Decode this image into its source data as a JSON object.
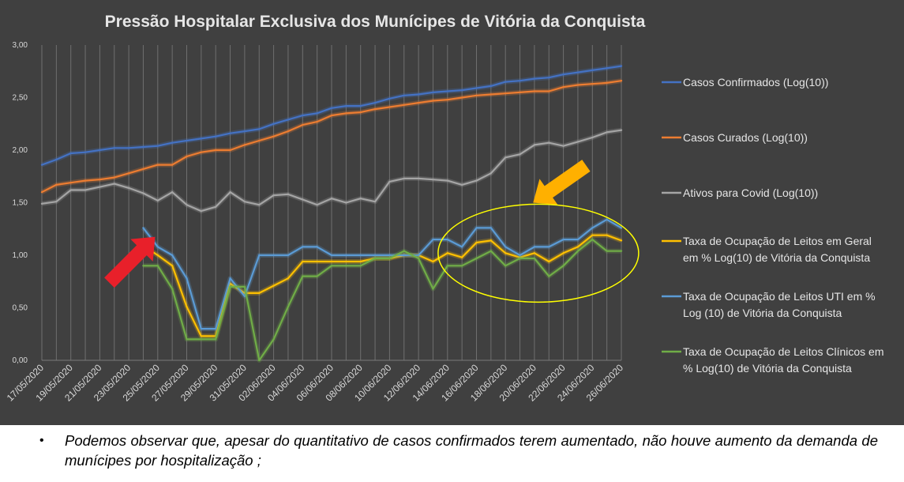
{
  "chart_data": {
    "type": "line",
    "title": "Pressão Hospitalar Exclusiva dos Munícipes de Vitória da Conquista",
    "xlabel": "",
    "ylabel": "",
    "ylim": [
      0,
      3
    ],
    "yticks": [
      "0,00",
      "0,50",
      "1,00",
      "1,50",
      "2,00",
      "2,50",
      "3,00"
    ],
    "grid": "vertical",
    "legend_position": "right",
    "x": [
      "17/05/2020",
      "18/05/2020",
      "19/05/2020",
      "20/05/2020",
      "21/05/2020",
      "22/05/2020",
      "23/05/2020",
      "24/05/2020",
      "25/05/2020",
      "26/05/2020",
      "27/05/2020",
      "28/05/2020",
      "29/05/2020",
      "30/05/2020",
      "31/05/2020",
      "01/06/2020",
      "02/06/2020",
      "03/06/2020",
      "04/06/2020",
      "05/06/2020",
      "06/06/2020",
      "07/06/2020",
      "08/06/2020",
      "09/06/2020",
      "10/06/2020",
      "11/06/2020",
      "12/06/2020",
      "13/06/2020",
      "14/06/2020",
      "15/06/2020",
      "16/06/2020",
      "17/06/2020",
      "18/06/2020",
      "19/06/2020",
      "20/06/2020",
      "21/06/2020",
      "22/06/2020",
      "23/06/2020",
      "24/06/2020",
      "25/06/2020",
      "26/06/2020"
    ],
    "xtick_labels": [
      "17/05/2020",
      "19/05/2020",
      "21/05/2020",
      "23/05/2020",
      "25/05/2020",
      "27/05/2020",
      "29/05/2020",
      "31/05/2020",
      "02/06/2020",
      "04/06/2020",
      "06/06/2020",
      "08/06/2020",
      "10/06/2020",
      "12/06/2020",
      "14/06/2020",
      "16/06/2020",
      "18/06/2020",
      "20/06/2020",
      "22/06/2020",
      "24/06/2020",
      "26/06/2020"
    ],
    "series": [
      {
        "name": "Casos Confirmados (Log(10))",
        "color": "#4472c4",
        "values": [
          1.86,
          1.91,
          1.97,
          1.98,
          2.0,
          2.02,
          2.02,
          2.03,
          2.04,
          2.07,
          2.09,
          2.11,
          2.13,
          2.16,
          2.18,
          2.2,
          2.25,
          2.29,
          2.33,
          2.35,
          2.4,
          2.42,
          2.42,
          2.45,
          2.49,
          2.52,
          2.53,
          2.55,
          2.56,
          2.57,
          2.59,
          2.61,
          2.65,
          2.66,
          2.68,
          2.69,
          2.72,
          2.74,
          2.76,
          2.78,
          2.8
        ]
      },
      {
        "name": "Casos Curados (Log(10))",
        "color": "#ed7d31",
        "values": [
          1.6,
          1.67,
          1.69,
          1.71,
          1.72,
          1.74,
          1.78,
          1.82,
          1.86,
          1.86,
          1.94,
          1.98,
          2.0,
          2.0,
          2.05,
          2.09,
          2.13,
          2.18,
          2.24,
          2.27,
          2.33,
          2.35,
          2.36,
          2.39,
          2.41,
          2.43,
          2.45,
          2.47,
          2.48,
          2.5,
          2.52,
          2.53,
          2.54,
          2.55,
          2.56,
          2.56,
          2.6,
          2.62,
          2.63,
          2.64,
          2.66
        ]
      },
      {
        "name": "Ativos para Covid (Log(10))",
        "color": "#a5a5a5",
        "values": [
          1.49,
          1.51,
          1.62,
          1.62,
          1.65,
          1.68,
          1.64,
          1.59,
          1.52,
          1.6,
          1.48,
          1.42,
          1.46,
          1.6,
          1.51,
          1.48,
          1.57,
          1.58,
          1.53,
          1.48,
          1.54,
          1.5,
          1.54,
          1.51,
          1.7,
          1.73,
          1.73,
          1.72,
          1.71,
          1.67,
          1.71,
          1.78,
          1.93,
          1.96,
          2.05,
          2.07,
          2.04,
          2.08,
          2.12,
          2.17,
          2.19
        ]
      },
      {
        "name": "Taxa de Ocupação de Leitos em Geral em % Log(10) de Vitória da Conquista",
        "color": "#ffc000",
        "values": [
          null,
          null,
          null,
          null,
          null,
          null,
          null,
          1.09,
          1.0,
          0.9,
          0.51,
          0.23,
          0.23,
          0.73,
          0.64,
          0.64,
          0.71,
          0.78,
          0.94,
          0.94,
          0.94,
          0.94,
          0.94,
          0.97,
          0.97,
          1.0,
          1.0,
          0.94,
          1.02,
          0.98,
          1.12,
          1.14,
          1.02,
          0.98,
          1.02,
          0.94,
          1.02,
          1.08,
          1.19,
          1.19,
          1.14
        ]
      },
      {
        "name": "Taxa de Ocupação de Leitos UTI em % Log (10) de Vitória da Conquista",
        "color": "#5b9bd5",
        "values": [
          null,
          null,
          null,
          null,
          null,
          null,
          null,
          1.26,
          1.08,
          1.0,
          0.78,
          0.3,
          0.3,
          0.78,
          0.61,
          1.0,
          1.0,
          1.0,
          1.08,
          1.08,
          1.0,
          1.0,
          1.0,
          1.0,
          1.0,
          1.0,
          1.0,
          1.15,
          1.15,
          1.08,
          1.26,
          1.26,
          1.08,
          1.0,
          1.08,
          1.08,
          1.15,
          1.15,
          1.26,
          1.34,
          1.26
        ]
      },
      {
        "name": "Taxa de Ocupação de Leitos Clínicos em % Log(10) de Vitória da Conquista",
        "color": "#70ad47",
        "values": [
          null,
          null,
          null,
          null,
          null,
          null,
          null,
          0.9,
          0.9,
          0.68,
          0.2,
          0.2,
          0.2,
          0.7,
          0.7,
          0.0,
          0.2,
          0.51,
          0.8,
          0.8,
          0.9,
          0.9,
          0.9,
          0.97,
          0.97,
          1.04,
          0.97,
          0.68,
          0.9,
          0.9,
          0.97,
          1.04,
          0.9,
          0.97,
          0.97,
          0.8,
          0.9,
          1.04,
          1.15,
          1.04,
          1.04
        ]
      }
    ],
    "legend": [
      {
        "lines": [
          "Casos Confirmados (Log(10))"
        ],
        "color": "#4472c4"
      },
      {
        "lines": [
          " Casos Curados (Log(10))"
        ],
        "color": "#ed7d31"
      },
      {
        "lines": [
          "Ativos para Covid (Log(10))"
        ],
        "color": "#a5a5a5"
      },
      {
        "lines": [
          "Taxa de Ocupação de Leitos em Geral",
          "em % Log(10) de Vitória da Conquista"
        ],
        "color": "#ffc000"
      },
      {
        "lines": [
          "Taxa de Ocupação de Leitos UTI em %",
          "Log (10) de Vitória da Conquista"
        ],
        "color": "#5b9bd5"
      },
      {
        "lines": [
          "Taxa de Ocupação de Leitos Clínicos em",
          "% Log(10) de Vitória da Conquista"
        ],
        "color": "#70ad47"
      }
    ],
    "annotations": [
      {
        "shape": "arrow",
        "color": "#e8202a",
        "points_at_x": "24/05/2020",
        "points_at_y": 1.25
      },
      {
        "shape": "arrow",
        "color": "#ffb000",
        "points_at_x": "21/06/2020",
        "points_at_y": 1.5
      },
      {
        "shape": "ellipse",
        "color": "#ffff00",
        "center_x": "20/06/2020",
        "center_y": 1.02
      }
    ]
  },
  "caption": {
    "bullet": "•",
    "text": "Podemos observar que, apesar do quantitativo de casos confirmados terem aumentado, não houve aumento da demanda de munícipes por hospitalização ;"
  }
}
